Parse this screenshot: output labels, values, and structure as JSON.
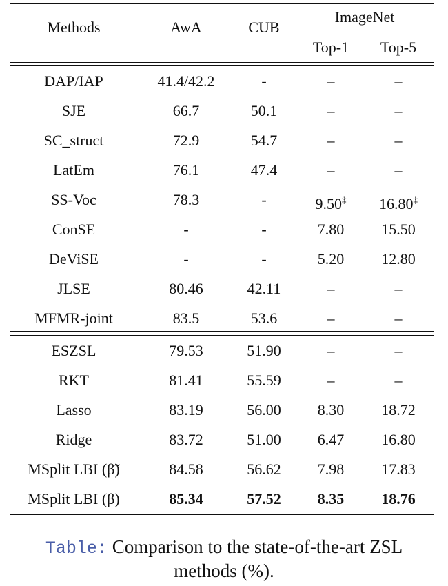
{
  "table": {
    "header": {
      "methods": "Methods",
      "awa": "AwA",
      "cub": "CUB",
      "imagenet": "ImageNet",
      "top1": "Top-1",
      "top5": "Top-5"
    },
    "groups": [
      [
        [
          "DAP/IAP",
          "41.4/42.2",
          "-",
          "–",
          "–"
        ],
        [
          "SJE",
          "66.7",
          "50.1",
          "–",
          "–"
        ],
        [
          "SC_struct",
          "72.9",
          "54.7",
          "–",
          "–"
        ],
        [
          "LatEm",
          "76.1",
          "47.4",
          "–",
          "–"
        ],
        [
          "SS-Voc",
          "78.3",
          "-",
          {
            "text": "9.50",
            "sup": "‡"
          },
          {
            "text": "16.80",
            "sup": "‡"
          }
        ],
        [
          "ConSE",
          "-",
          "-",
          "7.80",
          "15.50"
        ],
        [
          "DeViSE",
          "-",
          "-",
          "5.20",
          "12.80"
        ],
        [
          "JLSE",
          "80.46",
          "42.11",
          "–",
          "–"
        ],
        [
          "MFMR-joint",
          "83.5",
          "53.6",
          "–",
          "–"
        ]
      ],
      [
        [
          "ESZSL",
          "79.53",
          "51.90",
          "–",
          "–"
        ],
        [
          "RKT",
          "81.41",
          "55.59",
          "–",
          "–"
        ],
        [
          "Lasso",
          "83.19",
          "56.00",
          "8.30",
          "18.72"
        ],
        [
          "Ridge",
          "83.72",
          "51.00",
          "6.47",
          "16.80"
        ],
        [
          "MSplit LBI (β̃)",
          "84.58",
          "56.62",
          "7.98",
          "17.83"
        ],
        [
          "MSplit LBI (β)",
          {
            "text": "85.34",
            "bold": true
          },
          {
            "text": "57.52",
            "bold": true
          },
          {
            "text": "8.35",
            "bold": true
          },
          {
            "text": "18.76",
            "bold": true
          }
        ]
      ]
    ]
  },
  "caption": {
    "label": "Table:",
    "line1": "Comparison to the state-of-the-art ZSL",
    "line2": "methods (%)."
  }
}
